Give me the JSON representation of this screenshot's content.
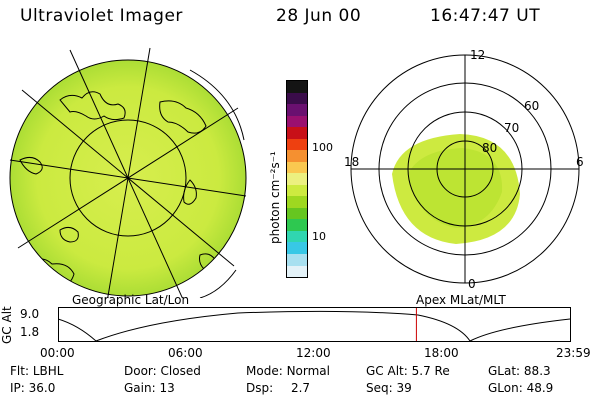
{
  "header": {
    "title": "Ultraviolet Imager",
    "date": "28 Jun 00",
    "time": "16:47:47 UT"
  },
  "colorbar": {
    "unit_label": "photon cm⁻²s⁻¹",
    "tick_high": "100",
    "tick_low": "10",
    "colors": [
      "#141414",
      "#3a0c4a",
      "#6a1070",
      "#9a1070",
      "#c81018",
      "#ee4010",
      "#f59030",
      "#fac850",
      "#ecf080",
      "#cdea40",
      "#9ed820",
      "#66c620",
      "#2ec850",
      "#30d6b0",
      "#38c8e6",
      "#a8e0f0",
      "#e4f2f8"
    ]
  },
  "geo_panel": {
    "label": "Geographic Lat/Lon"
  },
  "polar_panel": {
    "label": "Apex  MLat/MLT",
    "mlt_labels": {
      "top": "12",
      "left": "18",
      "right": "6",
      "bottom": "0"
    },
    "lat_labels": [
      "60",
      "70",
      "80"
    ]
  },
  "altitude_plot": {
    "axis_label": "GC Alt",
    "y_ticks": [
      "9.0",
      "1.8"
    ],
    "x_ticks": [
      "00:00",
      "06:00",
      "12:00",
      "18:00",
      "23:59"
    ],
    "current_time_fraction": 0.7
  },
  "status": {
    "flt_label": "Flt:",
    "flt_value": "LBHL",
    "ip_label": "IP:",
    "ip_value": "36.0",
    "door_label": "Door:",
    "door_value": "Closed",
    "gain_label": "Gain:",
    "gain_value": "13",
    "mode_label": "Mode:",
    "mode_value": "Normal",
    "dsp_label": "Dsp:",
    "dsp_value": "2.7",
    "gcalt_label": "GC Alt:",
    "gcalt_value": "5.7 Re",
    "seq_label": "Seq:",
    "seq_value": "39",
    "glat_label": "GLat:",
    "glat_value": "88.3",
    "glon_label": "GLon:",
    "glon_value": "48.9"
  }
}
